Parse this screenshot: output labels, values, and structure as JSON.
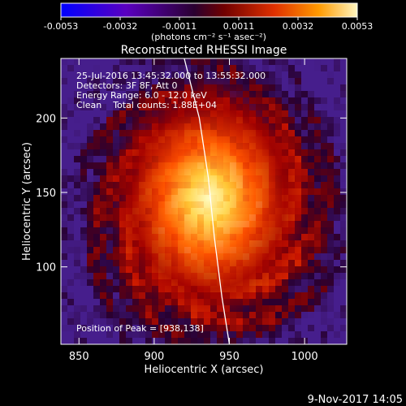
{
  "chart_data": {
    "type": "heatmap",
    "title": "Reconstructed RHESSI Image",
    "xlabel": "Heliocentric X (arcsec)",
    "ylabel": "Heliocentric Y (arcsec)",
    "xlim": [
      838,
      1028
    ],
    "ylim": [
      48,
      240
    ],
    "x_ticks": [
      850,
      900,
      950,
      1000
    ],
    "y_ticks": [
      100,
      150,
      200
    ],
    "colorbar": {
      "min": -0.0053,
      "max": 0.0053,
      "ticks": [
        "-0.0053",
        "-0.0032",
        "-0.0011",
        "0.0011",
        "0.0032",
        "0.0053"
      ],
      "units_label": "(photons cm⁻² s⁻¹ asec⁻²)",
      "colors": [
        "#0000ff",
        "#6a00b0",
        "#3a0040",
        "#7a0000",
        "#e03000",
        "#ff9000",
        "#ffe060",
        "#ffffff"
      ]
    },
    "annotations": [
      "25-Jul-2016 13:45:32.000 to 13:55:32.000",
      "Detectors: 3F 8F, Att 0",
      "Energy Range: 6.0 - 12.0 keV",
      "Clean    Total counts: 1.88E+04"
    ],
    "peak": {
      "x": 938,
      "y": 138,
      "label": "Position of Peak = [938,138]"
    },
    "limb_line": [
      [
        920,
        240
      ],
      [
        930,
        200
      ],
      [
        936,
        160
      ],
      [
        940,
        120
      ],
      [
        945,
        80
      ],
      [
        950,
        48
      ]
    ]
  },
  "footer": {
    "date": "9-Nov-2017 14:05"
  }
}
